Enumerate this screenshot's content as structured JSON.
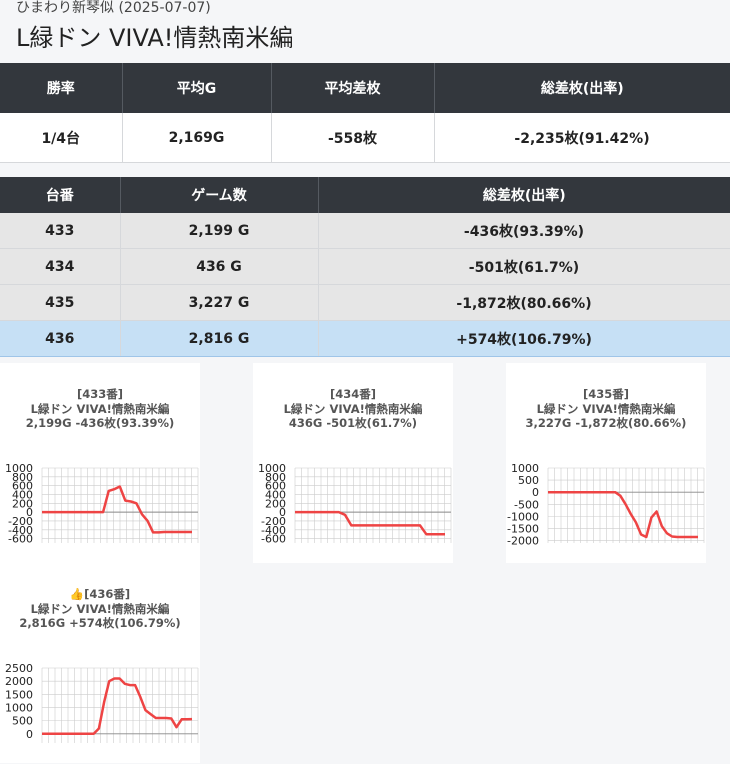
{
  "header": {
    "subtitle": "ひまわり新琴似 (2025-07-07)",
    "title": "L緑ドン VIVA!情熱南米編"
  },
  "summary": {
    "columns": [
      "勝率",
      "平均G",
      "平均差枚",
      "総差枚(出率)"
    ],
    "row": [
      "1/4台",
      "2,169G",
      "-558枚",
      "-2,235枚(91.42%)"
    ]
  },
  "machines": {
    "columns": [
      "台番",
      "ゲーム数",
      "総差枚(出率)"
    ],
    "rows": [
      [
        "433",
        "2,199 G",
        "-436枚(93.39%)"
      ],
      [
        "434",
        "436 G",
        "-501枚(61.7%)"
      ],
      [
        "435",
        "3,227 G",
        "-1,872枚(80.66%)"
      ],
      [
        "436",
        "2,816 G",
        "+574枚(106.79%)"
      ]
    ],
    "highlight_index": 3
  },
  "cards": [
    {
      "line1": "[433番]",
      "line2": "L緑ドン VIVA!情熱南米編",
      "line3": "2,199G -436枚(93.39%)"
    },
    {
      "line1": "[434番]",
      "line2": "L緑ドン VIVA!情熱南米編",
      "line3": "436G -501枚(61.7%)"
    },
    {
      "line1": "[435番]",
      "line2": "L緑ドン VIVA!情熱南米編",
      "line3": "3,227G -1,872枚(80.66%)"
    },
    {
      "line1": "👍[436番]",
      "line2": "L緑ドン VIVA!情熱南米編",
      "line3": "2,816G +574枚(106.79%)"
    }
  ],
  "colors": {
    "header_bg": "#33373d",
    "highlight_row": "#c6e0f5",
    "line": "#ee4444",
    "grid": "#cccccc"
  },
  "chart_data": [
    {
      "type": "line",
      "title": "",
      "ylim": [
        -700,
        1000
      ],
      "yticks": [
        "1000",
        "800",
        "600",
        "400",
        "200",
        "0",
        "-200",
        "-400",
        "-600"
      ],
      "series": [
        {
          "values": [
            0,
            0,
            0,
            0,
            0,
            0,
            0,
            0,
            0,
            0,
            0,
            0,
            480,
            520,
            580,
            260,
            240,
            200,
            -50,
            -200,
            -460,
            -460,
            -450,
            -450,
            -450,
            -450,
            -450,
            -450
          ]
        }
      ]
    },
    {
      "type": "line",
      "title": "",
      "ylim": [
        -700,
        1000
      ],
      "yticks": [
        "1000",
        "800",
        "600",
        "400",
        "200",
        "0",
        "-200",
        "-400",
        "-600"
      ],
      "series": [
        {
          "values": [
            0,
            0,
            0,
            0,
            0,
            0,
            0,
            0,
            -60,
            -300,
            -300,
            -300,
            -300,
            -300,
            -300,
            -300,
            -300,
            -300,
            -300,
            -300,
            -300,
            -500,
            -500,
            -500,
            -500
          ]
        }
      ]
    },
    {
      "type": "line",
      "title": "",
      "ylim": [
        -2100,
        1000
      ],
      "yticks": [
        "1000",
        "500",
        "0",
        "-500",
        "-1000",
        "-1500",
        "-2000"
      ],
      "series": [
        {
          "values": [
            0,
            0,
            0,
            0,
            0,
            0,
            0,
            0,
            0,
            0,
            0,
            0,
            0,
            0,
            -150,
            -500,
            -900,
            -1250,
            -1750,
            -1850,
            -1050,
            -800,
            -1400,
            -1700,
            -1830,
            -1850,
            -1850,
            -1850,
            -1850,
            -1850
          ]
        }
      ]
    },
    {
      "type": "line",
      "title": "",
      "ylim": [
        -350,
        2500
      ],
      "yticks": [
        "2500",
        "2000",
        "1500",
        "1000",
        "500",
        "0"
      ],
      "series": [
        {
          "values": [
            0,
            0,
            0,
            0,
            0,
            0,
            0,
            0,
            0,
            0,
            0,
            200,
            1200,
            2000,
            2100,
            2100,
            1900,
            1850,
            1850,
            1400,
            900,
            750,
            600,
            600,
            600,
            580,
            250,
            550,
            550,
            560
          ]
        }
      ]
    }
  ]
}
